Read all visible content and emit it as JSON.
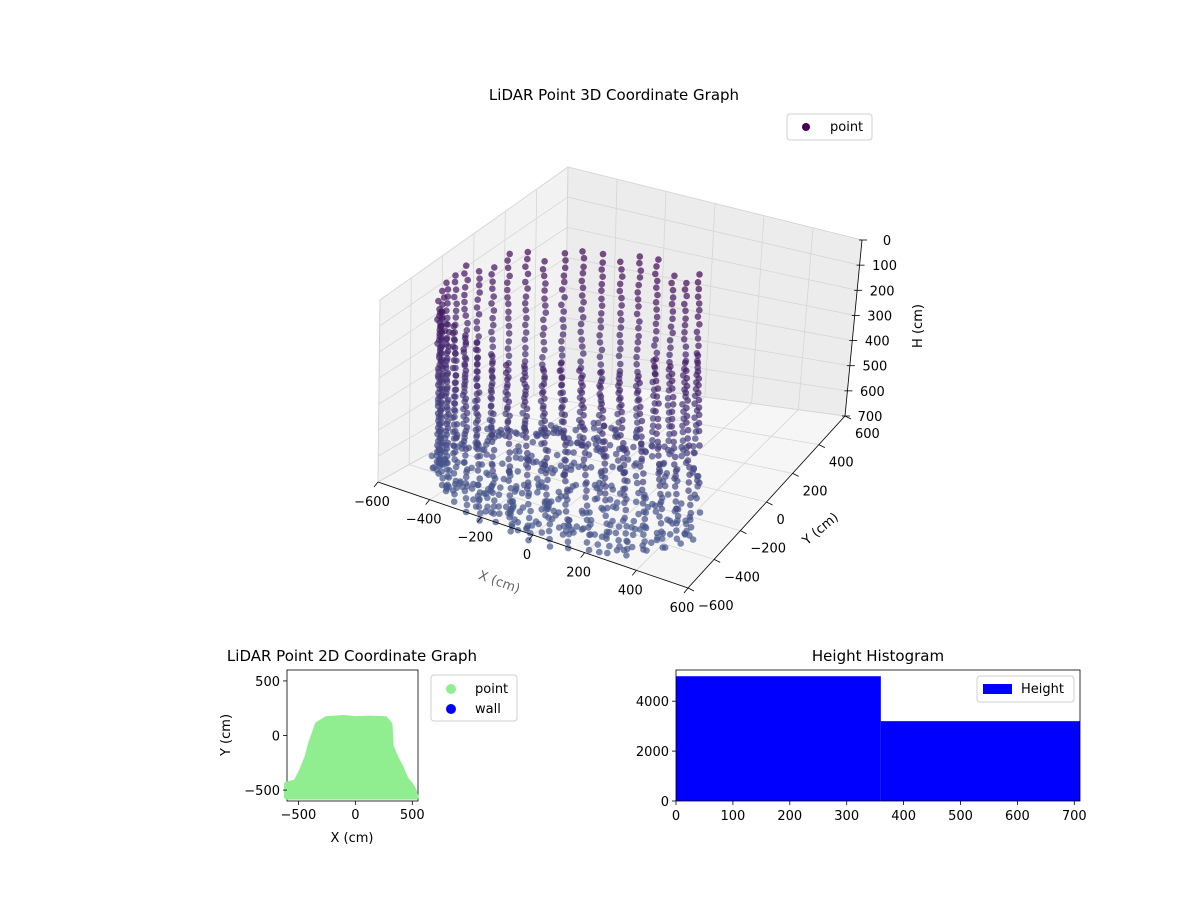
{
  "chart_data": [
    {
      "type": "scatter",
      "projection": "3d",
      "title": "LiDAR Point 3D Coordinate Graph",
      "xlabel": "X (cm)",
      "ylabel": "Y (cm)",
      "zlabel": "H (cm)",
      "xlim": [
        -600,
        600
      ],
      "ylim": [
        -600,
        600
      ],
      "zlim": [
        700,
        0
      ],
      "z_inverted": true,
      "xticks": [
        "−600",
        "−400",
        "−200",
        "0",
        "200",
        "400",
        "600"
      ],
      "yticks": [
        "−600",
        "−400",
        "−200",
        "0",
        "200",
        "400",
        "600"
      ],
      "zticks": [
        "0",
        "100",
        "200",
        "300",
        "400",
        "500",
        "600",
        "700"
      ],
      "grid": true,
      "legend": {
        "position": "top-right",
        "entries": [
          {
            "name": "point",
            "color": "#440154"
          }
        ]
      },
      "colormap": "viridis",
      "series": [
        {
          "name": "point",
          "shape": "ring of vertical point columns (room walls) plus floor scan",
          "x_range": [
            -600,
            550
          ],
          "y_range": [
            -600,
            150
          ],
          "h_range": [
            0,
            700
          ]
        }
      ]
    },
    {
      "type": "scatter",
      "title": "LiDAR Point 2D Coordinate Graph",
      "xlabel": "X (cm)",
      "ylabel": "Y (cm)",
      "xlim": [
        -600,
        550
      ],
      "ylim": [
        -600,
        600
      ],
      "xticks": [
        "−500",
        "0",
        "500"
      ],
      "yticks": [
        "−500",
        "0",
        "500"
      ],
      "legend": {
        "position": "outside-right",
        "entries": [
          {
            "name": "point",
            "color": "#90ee90"
          },
          {
            "name": "wall",
            "color": "#0000ff"
          }
        ]
      },
      "series": [
        {
          "name": "point",
          "color": "#90ee90",
          "outline": [
            [
              -600,
              -560
            ],
            [
              -600,
              -450
            ],
            [
              -520,
              -430
            ],
            [
              -470,
              -330
            ],
            [
              -420,
              -200
            ],
            [
              -390,
              -80
            ],
            [
              -350,
              40
            ],
            [
              -330,
              100
            ],
            [
              -250,
              150
            ],
            [
              -100,
              160
            ],
            [
              0,
              150
            ],
            [
              120,
              155
            ],
            [
              260,
              150
            ],
            [
              300,
              100
            ],
            [
              310,
              -100
            ],
            [
              350,
              -200
            ],
            [
              400,
              -300
            ],
            [
              440,
              -400
            ],
            [
              480,
              -450
            ],
            [
              510,
              -500
            ],
            [
              530,
              -560
            ]
          ]
        },
        {
          "name": "wall",
          "color": "#0000ff",
          "points": []
        }
      ]
    },
    {
      "type": "bar",
      "title": "Height Histogram",
      "xlabel": "",
      "ylabel": "",
      "xlim": [
        0,
        710
      ],
      "ylim": [
        0,
        5250
      ],
      "xticks": [
        "0",
        "100",
        "200",
        "300",
        "400",
        "500",
        "600",
        "700"
      ],
      "yticks": [
        "0",
        "2000",
        "4000"
      ],
      "legend": {
        "position": "top-right",
        "entries": [
          {
            "name": "Height",
            "color": "#0000ff"
          }
        ]
      },
      "bins": [
        {
          "from": 0,
          "to": 360,
          "count": 5000
        },
        {
          "from": 360,
          "to": 710,
          "count": 3200
        }
      ],
      "color": "#0000ff"
    }
  ]
}
